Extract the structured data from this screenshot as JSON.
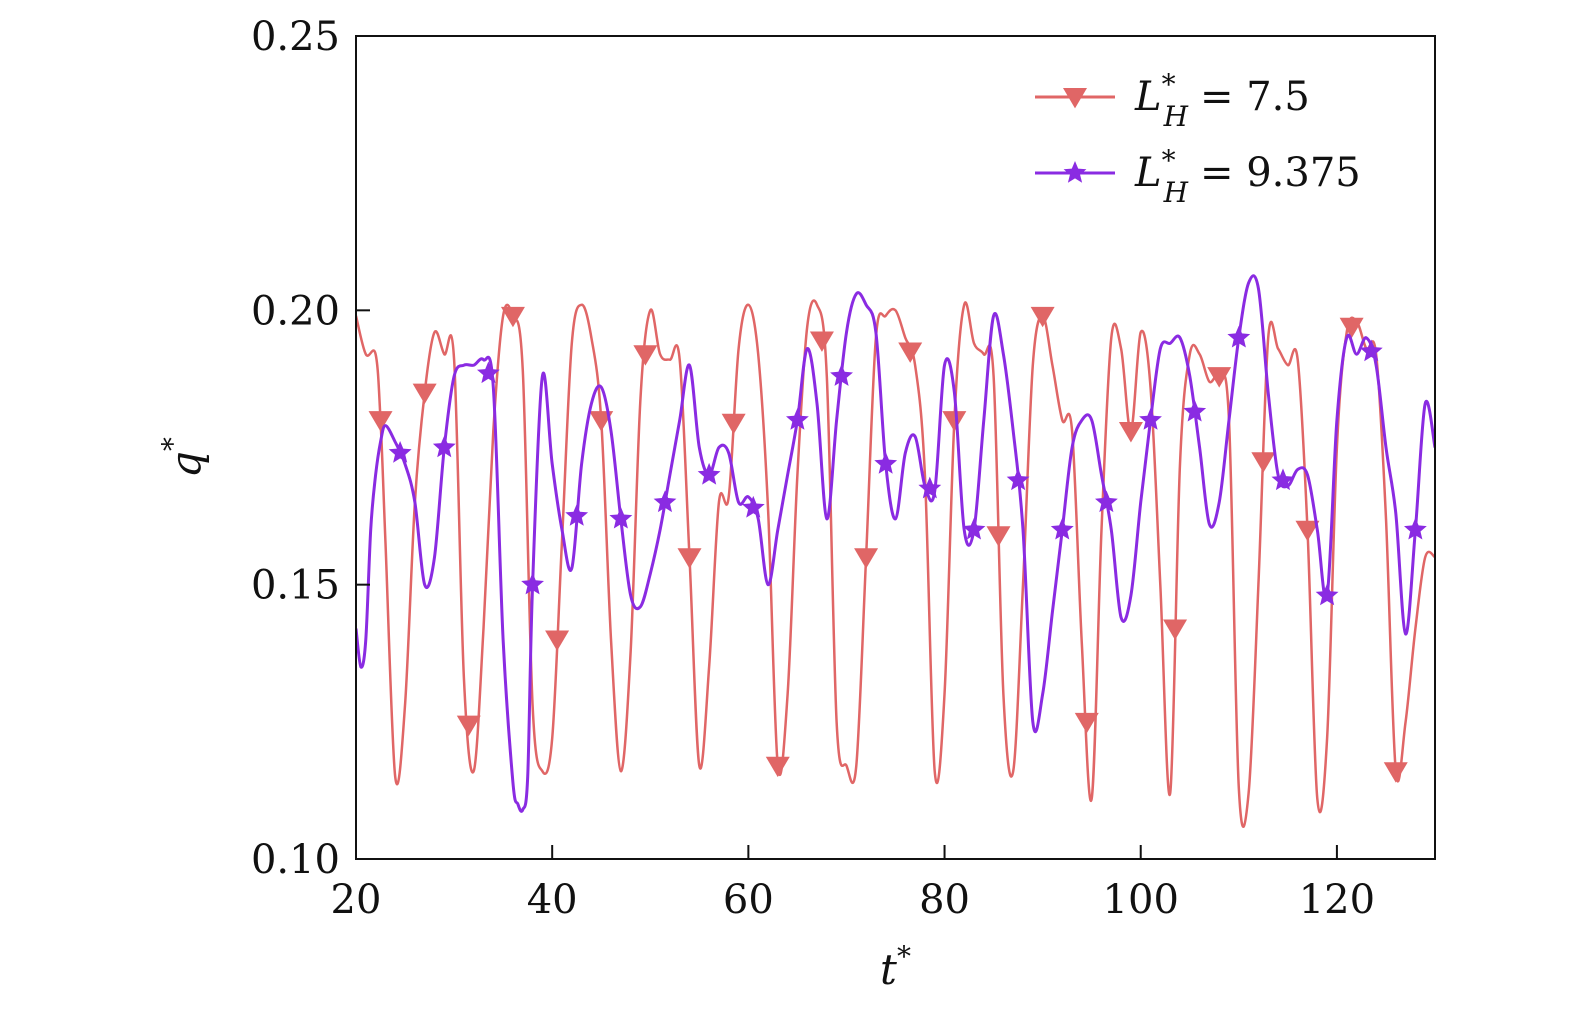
{
  "chart_data": {
    "type": "line",
    "xlabel": {
      "base": "t",
      "sup": "*"
    },
    "ylabel": {
      "base": "q",
      "sup": "*"
    },
    "xlim": [
      20,
      130
    ],
    "ylim": [
      0.1,
      0.25
    ],
    "xticks": [
      "20",
      "40",
      "60",
      "80",
      "100",
      "120"
    ],
    "yticks": [
      "0.10",
      "0.15",
      "0.20",
      "0.25"
    ],
    "grid": false,
    "legend_position": "top-right",
    "series": [
      {
        "name": "L*H = 7.5",
        "legend": {
          "var": "L",
          "sup": "*",
          "sub": "H",
          "value": "= 7.5"
        },
        "color": "#e06666",
        "marker": "triangle-down",
        "x": [
          20,
          21,
          22,
          22.5,
          23,
          24,
          25,
          26,
          27,
          28,
          29,
          30,
          31,
          32,
          33,
          34,
          35,
          36,
          37,
          38,
          39,
          40,
          41,
          42,
          43,
          44,
          45,
          46,
          47,
          48,
          49,
          50,
          51,
          52,
          53,
          54,
          55,
          56,
          57,
          58,
          59,
          60,
          61,
          62,
          63,
          64,
          65,
          66,
          67,
          68,
          69,
          70,
          71,
          72,
          73,
          74,
          75,
          76,
          77,
          78,
          79,
          80,
          81,
          82,
          83,
          84,
          85,
          86,
          87,
          88,
          89,
          90,
          91,
          92,
          93,
          94,
          95,
          96,
          97,
          98,
          99,
          100,
          101,
          102,
          103,
          104,
          105,
          106,
          107,
          108,
          109,
          110,
          111,
          112,
          113,
          114,
          115,
          116,
          117,
          118,
          119,
          120,
          121,
          122,
          123,
          124,
          125,
          126,
          127,
          128,
          129,
          130
        ],
        "y": [
          0.199,
          0.192,
          0.192,
          0.18,
          0.158,
          0.115,
          0.128,
          0.165,
          0.185,
          0.196,
          0.192,
          0.191,
          0.133,
          0.116,
          0.142,
          0.178,
          0.199,
          0.199,
          0.189,
          0.128,
          0.116,
          0.122,
          0.158,
          0.194,
          0.201,
          0.195,
          0.18,
          0.14,
          0.116,
          0.138,
          0.184,
          0.2,
          0.192,
          0.191,
          0.191,
          0.155,
          0.117,
          0.135,
          0.165,
          0.166,
          0.193,
          0.201,
          0.192,
          0.164,
          0.117,
          0.13,
          0.17,
          0.197,
          0.201,
          0.188,
          0.125,
          0.117,
          0.117,
          0.155,
          0.195,
          0.199,
          0.2,
          0.195,
          0.19,
          0.17,
          0.116,
          0.13,
          0.18,
          0.201,
          0.194,
          0.192,
          0.188,
          0.13,
          0.116,
          0.15,
          0.19,
          0.199,
          0.19,
          0.18,
          0.178,
          0.139,
          0.111,
          0.16,
          0.195,
          0.193,
          0.178,
          0.196,
          0.186,
          0.15,
          0.112,
          0.172,
          0.192,
          0.192,
          0.187,
          0.188,
          0.18,
          0.113,
          0.112,
          0.15,
          0.195,
          0.193,
          0.19,
          0.191,
          0.16,
          0.111,
          0.122,
          0.175,
          0.196,
          0.198,
          0.193,
          0.192,
          0.162,
          0.116,
          0.125,
          0.142,
          0.155,
          0.155
        ]
      },
      {
        "name": "L*H = 9.375",
        "legend": {
          "var": "L",
          "sup": "*",
          "sub": "H",
          "value": "= 9.375"
        },
        "color": "#8a2be2",
        "marker": "star",
        "x": [
          20,
          20.5,
          21,
          21.5,
          22,
          22.5,
          23,
          24,
          25,
          26,
          27,
          28,
          29,
          30,
          31,
          32,
          33,
          34,
          35,
          36,
          36.5,
          37,
          37.5,
          38,
          39,
          40,
          41,
          42,
          43,
          44,
          45,
          46,
          47,
          48,
          49,
          50,
          51,
          52,
          53,
          54,
          55,
          56,
          57,
          58,
          59,
          60,
          61,
          62,
          63,
          64,
          65,
          66,
          67,
          68,
          69,
          70,
          71,
          72,
          73,
          74,
          75,
          76,
          77,
          78,
          79,
          80,
          81,
          82,
          83,
          84,
          85,
          86,
          87,
          88,
          89,
          90,
          91,
          92,
          93,
          94,
          95,
          96,
          97,
          98,
          99,
          100,
          101,
          102,
          103,
          104,
          105,
          106,
          107,
          108,
          109,
          110,
          111,
          112,
          113,
          114,
          115,
          116,
          117,
          118,
          119,
          120,
          121,
          122,
          123,
          124,
          125,
          126,
          127,
          128,
          129,
          130
        ],
        "y": [
          0.142,
          0.135,
          0.14,
          0.16,
          0.17,
          0.176,
          0.179,
          0.176,
          0.172,
          0.165,
          0.15,
          0.155,
          0.175,
          0.188,
          0.19,
          0.19,
          0.191,
          0.186,
          0.14,
          0.114,
          0.11,
          0.109,
          0.115,
          0.15,
          0.188,
          0.172,
          0.16,
          0.153,
          0.172,
          0.183,
          0.186,
          0.178,
          0.162,
          0.148,
          0.146,
          0.152,
          0.16,
          0.17,
          0.18,
          0.19,
          0.175,
          0.17,
          0.175,
          0.174,
          0.165,
          0.166,
          0.162,
          0.15,
          0.16,
          0.17,
          0.18,
          0.193,
          0.183,
          0.162,
          0.18,
          0.196,
          0.203,
          0.201,
          0.196,
          0.172,
          0.162,
          0.174,
          0.177,
          0.168,
          0.167,
          0.19,
          0.185,
          0.16,
          0.16,
          0.18,
          0.199,
          0.192,
          0.178,
          0.16,
          0.125,
          0.13,
          0.145,
          0.16,
          0.175,
          0.18,
          0.18,
          0.17,
          0.16,
          0.144,
          0.148,
          0.165,
          0.18,
          0.193,
          0.194,
          0.195,
          0.188,
          0.175,
          0.161,
          0.165,
          0.18,
          0.195,
          0.205,
          0.204,
          0.185,
          0.17,
          0.168,
          0.171,
          0.17,
          0.16,
          0.148,
          0.18,
          0.195,
          0.192,
          0.195,
          0.19,
          0.175,
          0.163,
          0.141,
          0.16,
          0.183,
          0.175
        ]
      }
    ]
  }
}
